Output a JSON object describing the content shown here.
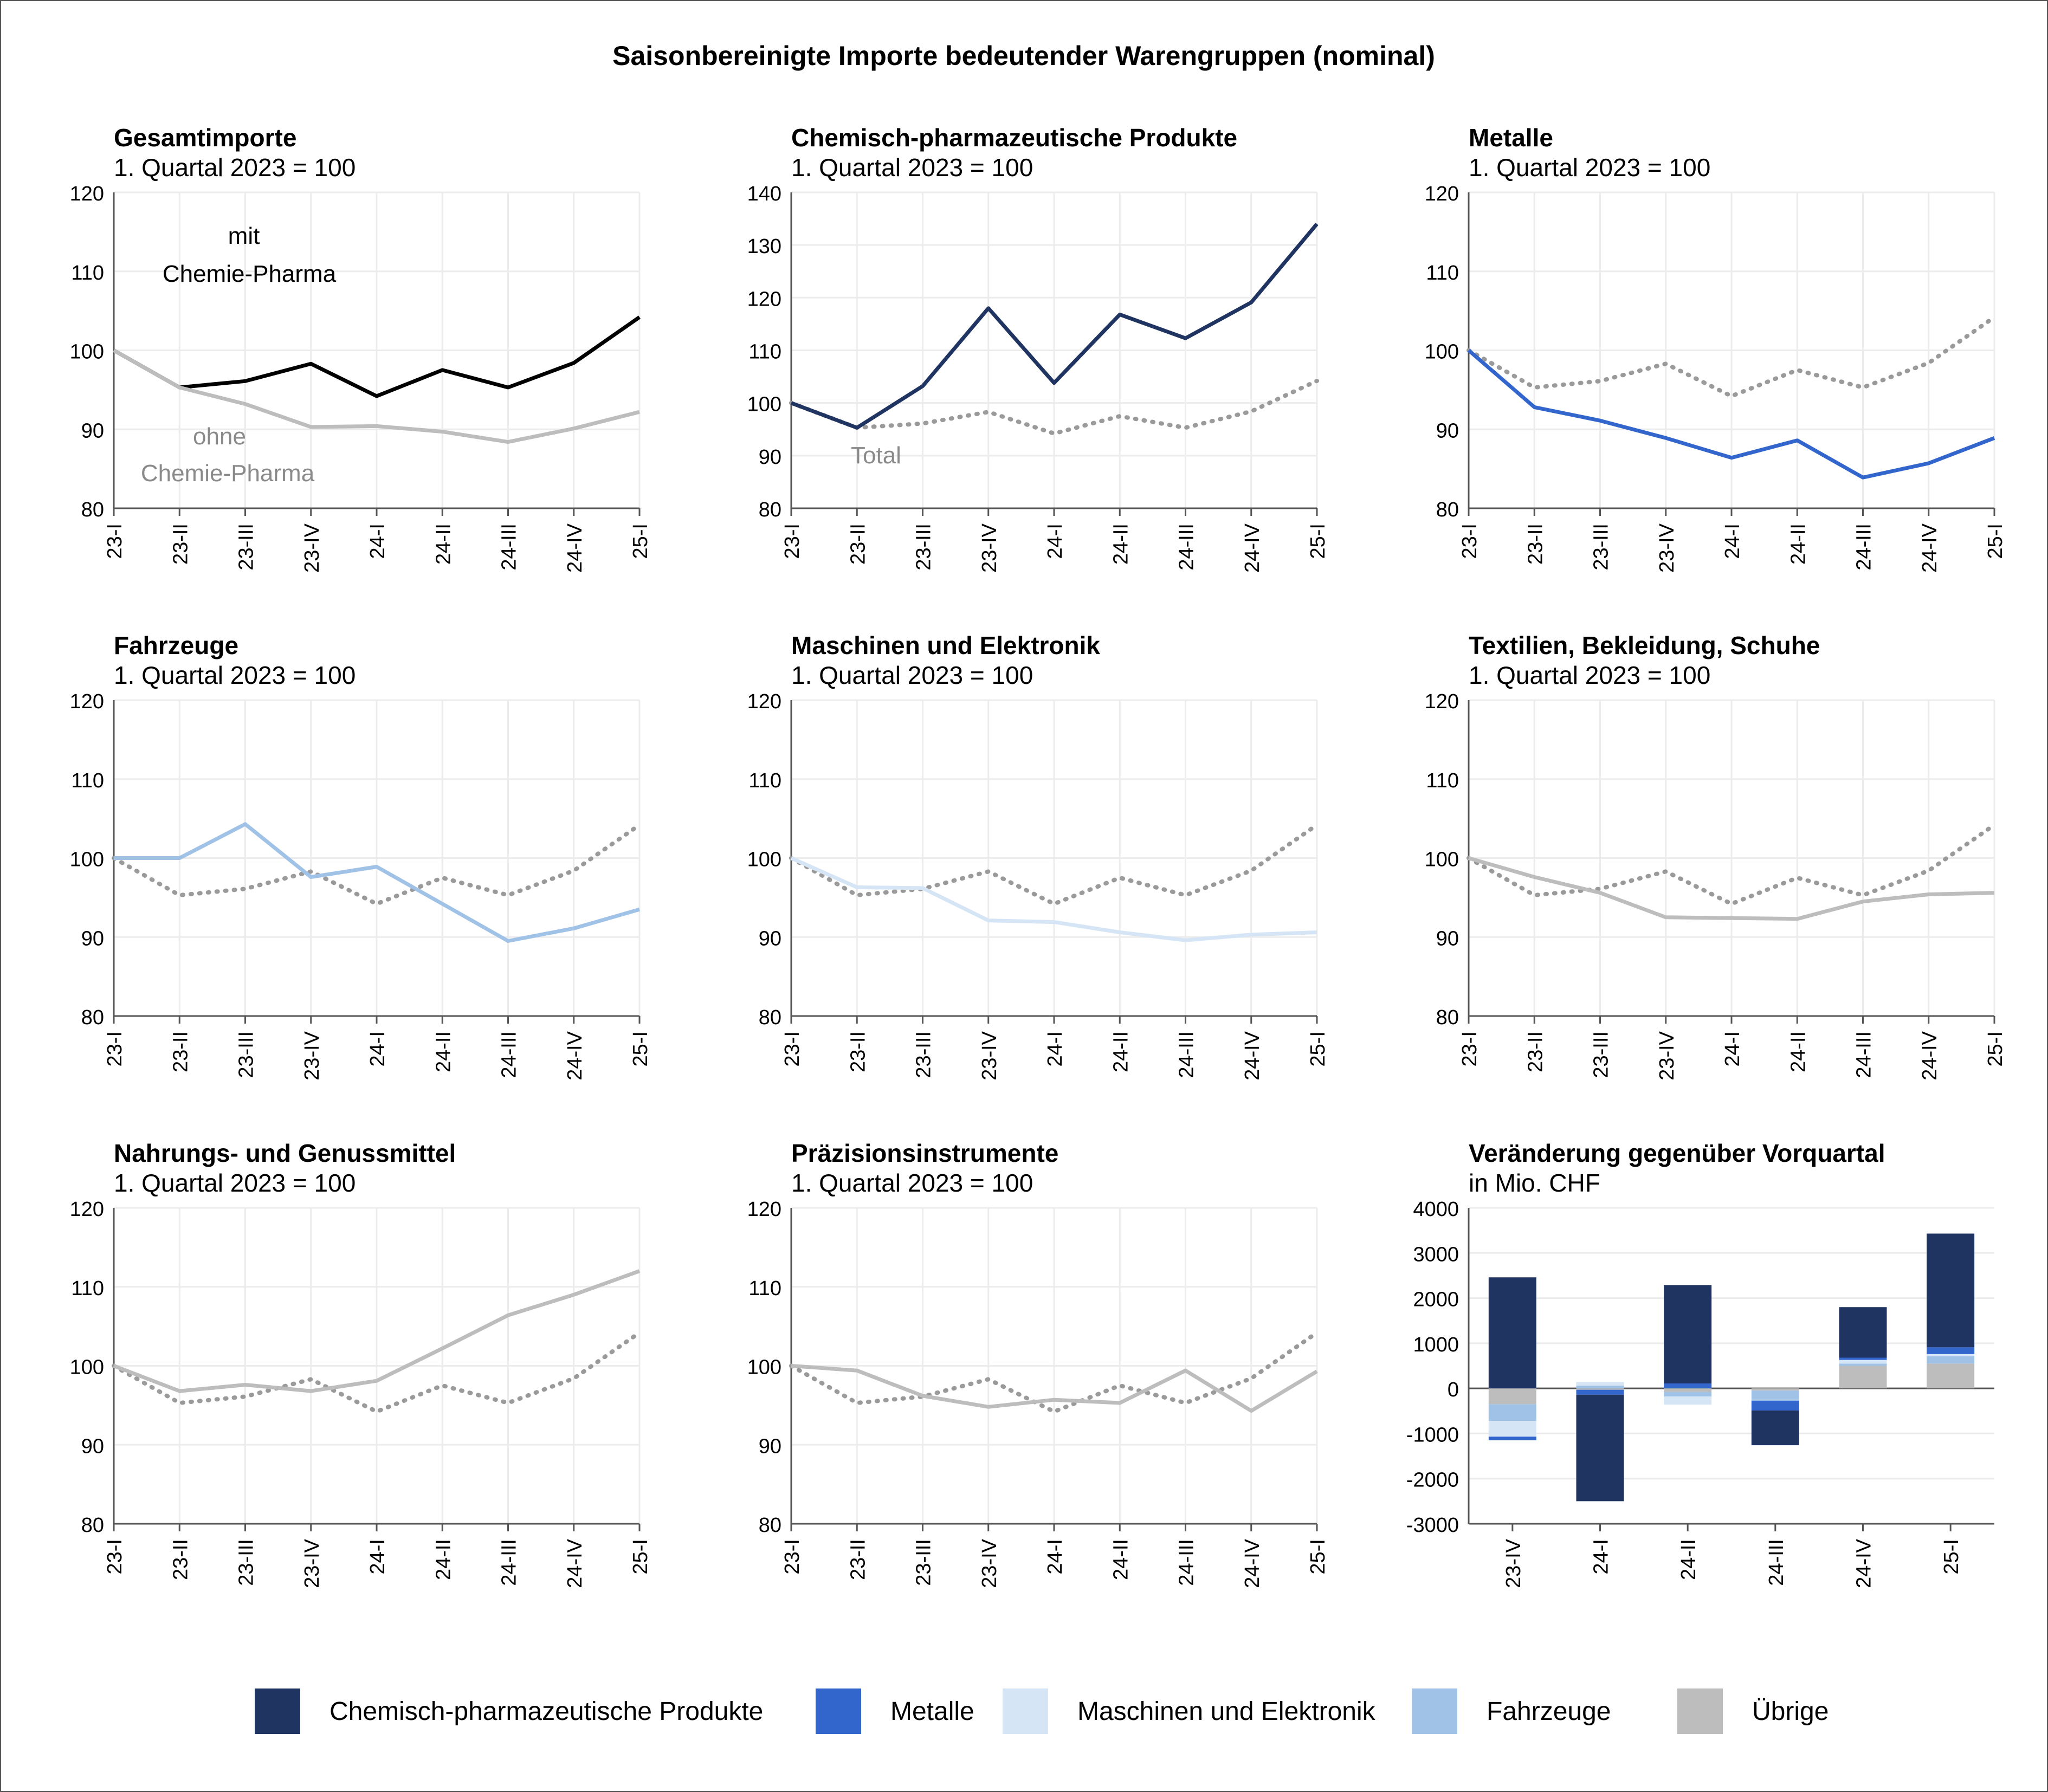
{
  "main_title": "Saisonbereinigte Importe bedeutender Warengruppen (nominal)",
  "colors": {
    "total": "#000000",
    "ohne": "#bdbdbd",
    "ref_dotted": "#9a9a9a",
    "chem": "#1f3461",
    "metal": "#3366cc",
    "machines": "#d5e5f5",
    "vehicles": "#9fc2e6",
    "other": "#bdbdbd",
    "grid": "#ececec",
    "axis": "#555555"
  },
  "chart_data": [
    {
      "type": "line",
      "title": "Gesamtimporte",
      "subtitle": "1. Quartal 2023 = 100",
      "categories": [
        "23-I",
        "23-II",
        "23-III",
        "23-IV",
        "24-I",
        "24-II",
        "24-III",
        "24-IV",
        "25-I"
      ],
      "ylim": [
        80,
        120
      ],
      "yticks": [
        80,
        90,
        100,
        110,
        120
      ],
      "series": [
        {
          "name": "mit Chemie-Pharma",
          "color": "#000000",
          "style": "solid",
          "values": [
            100,
            95.3,
            96.1,
            98.3,
            94.2,
            97.5,
            95.3,
            98.4,
            104.2
          ]
        },
        {
          "name": "ohne Chemie-Pharma",
          "color": "#bdbdbd",
          "style": "solid",
          "values": [
            100,
            95.3,
            93.2,
            90.3,
            90.4,
            89.7,
            88.4,
            90.1,
            92.2
          ]
        }
      ],
      "annotations": [
        {
          "text": "mit",
          "color": "#000000"
        },
        {
          "text": "Chemie-Pharma",
          "color": "#000000"
        },
        {
          "text": "ohne",
          "color": "#8a8a8a"
        },
        {
          "text": "Chemie-Pharma",
          "color": "#8a8a8a"
        }
      ]
    },
    {
      "type": "line",
      "title": "Chemisch-pharmazeutische Produkte",
      "subtitle": "1. Quartal 2023 = 100",
      "categories": [
        "23-I",
        "23-II",
        "23-III",
        "23-IV",
        "24-I",
        "24-II",
        "24-III",
        "24-IV",
        "25-I"
      ],
      "ylim": [
        80,
        140
      ],
      "yticks": [
        80,
        90,
        100,
        110,
        120,
        130,
        140
      ],
      "series": [
        {
          "name": "Total",
          "color": "#9a9a9a",
          "style": "dotted",
          "values": [
            100,
            95.3,
            96.1,
            98.3,
            94.2,
            97.5,
            95.3,
            98.4,
            104.2
          ]
        },
        {
          "name": "Chemisch-pharmazeutische Produkte",
          "color": "#1f3461",
          "style": "solid",
          "values": [
            100,
            95.3,
            103.2,
            118,
            103.8,
            116.8,
            112.3,
            119.1,
            134
          ]
        }
      ],
      "annotations": [
        {
          "text": "Total",
          "color": "#8a8a8a"
        }
      ]
    },
    {
      "type": "line",
      "title": "Metalle",
      "subtitle": "1. Quartal 2023 = 100",
      "categories": [
        "23-I",
        "23-II",
        "23-III",
        "23-IV",
        "24-I",
        "24-II",
        "24-III",
        "24-IV",
        "25-I"
      ],
      "ylim": [
        80,
        120
      ],
      "yticks": [
        80,
        90,
        100,
        110,
        120
      ],
      "series": [
        {
          "name": "Total",
          "color": "#9a9a9a",
          "style": "dotted",
          "values": [
            100,
            95.3,
            96.1,
            98.3,
            94.2,
            97.5,
            95.3,
            98.4,
            104.2
          ]
        },
        {
          "name": "Metalle",
          "color": "#3366cc",
          "style": "solid",
          "values": [
            100,
            92.8,
            91.1,
            88.9,
            86.4,
            88.6,
            83.9,
            85.7,
            88.9
          ]
        }
      ],
      "annotations": []
    },
    {
      "type": "line",
      "title": "Fahrzeuge",
      "subtitle": "1. Quartal 2023 = 100",
      "categories": [
        "23-I",
        "23-II",
        "23-III",
        "23-IV",
        "24-I",
        "24-II",
        "24-III",
        "24-IV",
        "25-I"
      ],
      "ylim": [
        80,
        120
      ],
      "yticks": [
        80,
        90,
        100,
        110,
        120
      ],
      "series": [
        {
          "name": "Total",
          "color": "#9a9a9a",
          "style": "dotted",
          "values": [
            100,
            95.3,
            96.1,
            98.3,
            94.2,
            97.5,
            95.3,
            98.4,
            104.2
          ]
        },
        {
          "name": "Fahrzeuge",
          "color": "#9fc2e6",
          "style": "solid",
          "values": [
            100,
            100,
            104.3,
            97.6,
            98.9,
            94.2,
            89.5,
            91.1,
            93.5
          ]
        }
      ],
      "annotations": []
    },
    {
      "type": "line",
      "title": "Maschinen und Elektronik",
      "subtitle": "1. Quartal 2023 = 100",
      "categories": [
        "23-I",
        "23-II",
        "23-III",
        "23-IV",
        "24-I",
        "24-II",
        "24-III",
        "24-IV",
        "25-I"
      ],
      "ylim": [
        80,
        120
      ],
      "yticks": [
        80,
        90,
        100,
        110,
        120
      ],
      "series": [
        {
          "name": "Total",
          "color": "#9a9a9a",
          "style": "dotted",
          "values": [
            100,
            95.3,
            96.1,
            98.3,
            94.2,
            97.5,
            95.3,
            98.4,
            104.2
          ]
        },
        {
          "name": "Maschinen und Elektronik",
          "color": "#d5e5f5",
          "style": "solid",
          "values": [
            100,
            96.3,
            96.2,
            92.1,
            91.9,
            90.6,
            89.6,
            90.3,
            90.6
          ]
        }
      ],
      "annotations": []
    },
    {
      "type": "line",
      "title": "Textilien, Bekleidung, Schuhe",
      "subtitle": "1. Quartal 2023 = 100",
      "categories": [
        "23-I",
        "23-II",
        "23-III",
        "23-IV",
        "24-I",
        "24-II",
        "24-III",
        "24-IV",
        "25-I"
      ],
      "ylim": [
        80,
        120
      ],
      "yticks": [
        80,
        90,
        100,
        110,
        120
      ],
      "series": [
        {
          "name": "Total",
          "color": "#9a9a9a",
          "style": "dotted",
          "values": [
            100,
            95.3,
            96.1,
            98.3,
            94.2,
            97.5,
            95.3,
            98.4,
            104.2
          ]
        },
        {
          "name": "Textilien, Bekleidung, Schuhe",
          "color": "#bdbdbd",
          "style": "solid",
          "values": [
            100,
            97.6,
            95.6,
            92.5,
            92.4,
            92.3,
            94.5,
            95.4,
            95.6
          ]
        }
      ],
      "annotations": []
    },
    {
      "type": "line",
      "title": "Nahrungs- und Genussmittel",
      "subtitle": "1. Quartal 2023 = 100",
      "categories": [
        "23-I",
        "23-II",
        "23-III",
        "23-IV",
        "24-I",
        "24-II",
        "24-III",
        "24-IV",
        "25-I"
      ],
      "ylim": [
        80,
        120
      ],
      "yticks": [
        80,
        90,
        100,
        110,
        120
      ],
      "series": [
        {
          "name": "Total",
          "color": "#9a9a9a",
          "style": "dotted",
          "values": [
            100,
            95.3,
            96.1,
            98.3,
            94.2,
            97.5,
            95.3,
            98.4,
            104.2
          ]
        },
        {
          "name": "Nahrungs- und Genussmittel",
          "color": "#bdbdbd",
          "style": "solid",
          "values": [
            100,
            96.8,
            97.6,
            96.8,
            98.1,
            102.2,
            106.4,
            109,
            112
          ]
        }
      ],
      "annotations": []
    },
    {
      "type": "line",
      "title": "Präzisionsinstrumente",
      "subtitle": "1. Quartal 2023 = 100",
      "categories": [
        "23-I",
        "23-II",
        "23-III",
        "23-IV",
        "24-I",
        "24-II",
        "24-III",
        "24-IV",
        "25-I"
      ],
      "ylim": [
        80,
        120
      ],
      "yticks": [
        80,
        90,
        100,
        110,
        120
      ],
      "series": [
        {
          "name": "Total",
          "color": "#9a9a9a",
          "style": "dotted",
          "values": [
            100,
            95.3,
            96.1,
            98.3,
            94.2,
            97.5,
            95.3,
            98.4,
            104.2
          ]
        },
        {
          "name": "Präzisionsinstrumente",
          "color": "#bdbdbd",
          "style": "solid",
          "values": [
            100,
            99.4,
            96.2,
            94.8,
            95.7,
            95.3,
            99.4,
            94.3,
            99.3
          ]
        }
      ],
      "annotations": []
    },
    {
      "type": "stacked-bar",
      "title": "Veränderung gegenüber Vorquartal",
      "subtitle": "in Mio. CHF",
      "categories": [
        "23-IV",
        "24-I",
        "24-II",
        "24-III",
        "24-IV",
        "25-I"
      ],
      "ylim": [
        -3000,
        4000
      ],
      "yticks": [
        -3000,
        -2000,
        -1000,
        0,
        1000,
        2000,
        3000,
        4000
      ],
      "series": [
        {
          "name": "Übrige",
          "color": "#bdbdbd",
          "values": [
            -350,
            -30,
            -80,
            -50,
            500,
            550
          ]
        },
        {
          "name": "Fahrzeuge",
          "color": "#9fc2e6",
          "values": [
            -370,
            60,
            -100,
            -200,
            50,
            160
          ]
        },
        {
          "name": "Maschinen und Elektronik",
          "color": "#d5e5f5",
          "values": [
            -350,
            80,
            -180,
            -20,
            80,
            50
          ]
        },
        {
          "name": "Metalle",
          "color": "#3366cc",
          "values": [
            -80,
            -110,
            110,
            -220,
            50,
            150
          ]
        },
        {
          "name": "Chemisch-pharmazeutische Produkte",
          "color": "#1f3461",
          "values": [
            2460,
            -2360,
            2180,
            -770,
            1120,
            2520
          ]
        }
      ]
    }
  ],
  "legend": [
    {
      "label": "Chemisch-pharmazeutische Produkte",
      "color": "#1f3461"
    },
    {
      "label": "Metalle",
      "color": "#3366cc"
    },
    {
      "label": "Maschinen und Elektronik",
      "color": "#d5e5f5"
    },
    {
      "label": "Fahrzeuge",
      "color": "#9fc2e6"
    },
    {
      "label": "Übrige",
      "color": "#bdbdbd"
    }
  ]
}
